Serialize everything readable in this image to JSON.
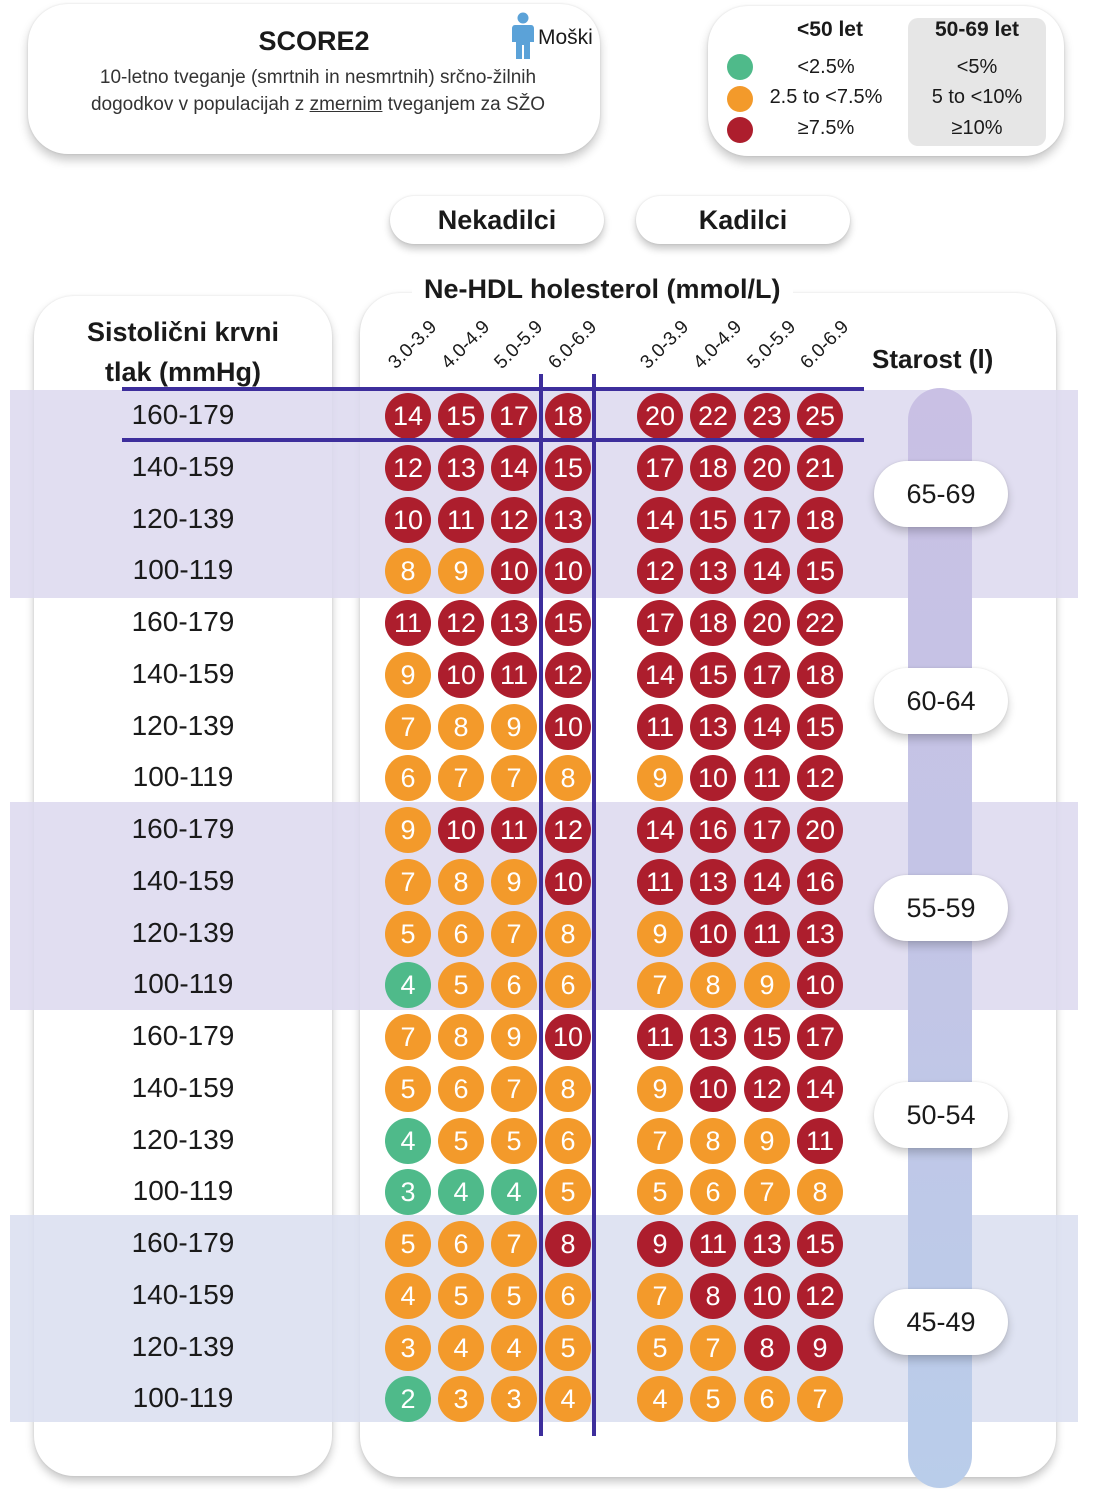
{
  "header": {
    "title": "SCORE2",
    "gender_label": "Moški",
    "description_line1": "10-letno tveganje (smrtnih in nesmrtnih) srčno-žilnih",
    "description_line2_pre": "dogodkov v populacijah z ",
    "description_line2_underlined": "zmernim",
    "description_line2_post": " tveganjem za SŽO"
  },
  "legend": {
    "col_under50": "<50 let",
    "col_50to69": "50-69 let",
    "rows": [
      {
        "color": "#4fba8a",
        "under50": "<2.5%",
        "age50to69": "<5%"
      },
      {
        "color": "#f39a2b",
        "under50": "2.5 to <7.5%",
        "age50to69": "5 to <10%"
      },
      {
        "color": "#ad1e2d",
        "under50": "≥7.5%",
        "age50to69": "≥10%"
      }
    ]
  },
  "groups": {
    "nonsmokers": "Nekadilci",
    "smokers": "Kadilci"
  },
  "cholesterol_label": "Ne-HDL holesterol (mmol/L)",
  "cholesterol_columns": [
    "3.0-3.9",
    "4.0-4.9",
    "5.0-5.9",
    "6.0-6.9"
  ],
  "sbp_title_line1": "Sistolični krvni",
  "sbp_title_line2": "tlak (mmHg)",
  "age_title": "Starost (l)",
  "colors": {
    "green": "#4fba8a",
    "orange": "#f39a2b",
    "red": "#ad1e2d",
    "highlight_line": "#3d2e9c",
    "band_purple": "#dcd8ee",
    "band_blue": "#d9def0"
  },
  "age_groups": [
    {
      "label": "65-69",
      "rows": [
        {
          "sbp": "160-179",
          "nonsmokers": [
            14,
            15,
            17,
            18
          ],
          "smokers": [
            20,
            22,
            23,
            25
          ]
        },
        {
          "sbp": "140-159",
          "nonsmokers": [
            12,
            13,
            14,
            15
          ],
          "smokers": [
            17,
            18,
            20,
            21
          ]
        },
        {
          "sbp": "120-139",
          "nonsmokers": [
            10,
            11,
            12,
            13
          ],
          "smokers": [
            14,
            15,
            17,
            18
          ]
        },
        {
          "sbp": "100-119",
          "nonsmokers": [
            8,
            9,
            10,
            10
          ],
          "smokers": [
            12,
            13,
            14,
            15
          ]
        }
      ]
    },
    {
      "label": "60-64",
      "rows": [
        {
          "sbp": "160-179",
          "nonsmokers": [
            11,
            12,
            13,
            15
          ],
          "smokers": [
            17,
            18,
            20,
            22
          ]
        },
        {
          "sbp": "140-159",
          "nonsmokers": [
            9,
            10,
            11,
            12
          ],
          "smokers": [
            14,
            15,
            17,
            18
          ]
        },
        {
          "sbp": "120-139",
          "nonsmokers": [
            7,
            8,
            9,
            10
          ],
          "smokers": [
            11,
            13,
            14,
            15
          ]
        },
        {
          "sbp": "100-119",
          "nonsmokers": [
            6,
            7,
            7,
            8
          ],
          "smokers": [
            9,
            10,
            11,
            12
          ]
        }
      ]
    },
    {
      "label": "55-59",
      "rows": [
        {
          "sbp": "160-179",
          "nonsmokers": [
            9,
            10,
            11,
            12
          ],
          "smokers": [
            14,
            16,
            17,
            20
          ]
        },
        {
          "sbp": "140-159",
          "nonsmokers": [
            7,
            8,
            9,
            10
          ],
          "smokers": [
            11,
            13,
            14,
            16
          ]
        },
        {
          "sbp": "120-139",
          "nonsmokers": [
            5,
            6,
            7,
            8
          ],
          "smokers": [
            9,
            10,
            11,
            13
          ]
        },
        {
          "sbp": "100-119",
          "nonsmokers": [
            4,
            5,
            6,
            6
          ],
          "smokers": [
            7,
            8,
            9,
            10
          ]
        }
      ]
    },
    {
      "label": "50-54",
      "rows": [
        {
          "sbp": "160-179",
          "nonsmokers": [
            7,
            8,
            9,
            10
          ],
          "smokers": [
            11,
            13,
            15,
            17
          ]
        },
        {
          "sbp": "140-159",
          "nonsmokers": [
            5,
            6,
            7,
            8
          ],
          "smokers": [
            9,
            10,
            12,
            14
          ]
        },
        {
          "sbp": "120-139",
          "nonsmokers": [
            4,
            5,
            5,
            6
          ],
          "smokers": [
            7,
            8,
            9,
            11
          ]
        },
        {
          "sbp": "100-119",
          "nonsmokers": [
            3,
            4,
            4,
            5
          ],
          "smokers": [
            5,
            6,
            7,
            8
          ]
        }
      ]
    },
    {
      "label": "45-49",
      "rows": [
        {
          "sbp": "160-179",
          "nonsmokers": [
            5,
            6,
            7,
            8
          ],
          "smokers": [
            9,
            11,
            13,
            15
          ]
        },
        {
          "sbp": "140-159",
          "nonsmokers": [
            4,
            5,
            5,
            6
          ],
          "smokers": [
            7,
            8,
            10,
            12
          ]
        },
        {
          "sbp": "120-139",
          "nonsmokers": [
            3,
            4,
            4,
            5
          ],
          "smokers": [
            5,
            7,
            8,
            9
          ]
        },
        {
          "sbp": "100-119",
          "nonsmokers": [
            2,
            3,
            3,
            4
          ],
          "smokers": [
            4,
            5,
            6,
            7
          ]
        }
      ]
    }
  ]
}
